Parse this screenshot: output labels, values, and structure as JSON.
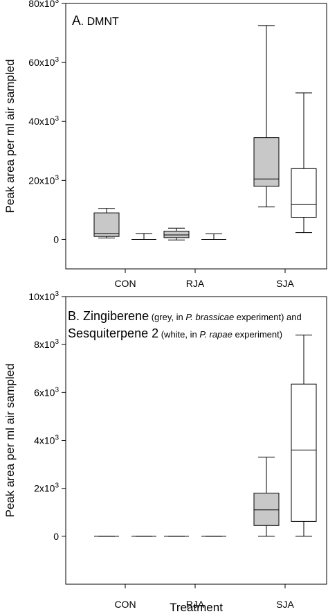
{
  "chart_data": [
    {
      "type": "box",
      "panel_label": "A",
      "title": "DMNT",
      "ylabel": "Peak area per ml air sampled",
      "xlabel": "",
      "categories": [
        "CON",
        "RJA",
        "SJA"
      ],
      "ylim": [
        -10000,
        80000
      ],
      "yticks": [
        {
          "value": 0,
          "base": "0",
          "exp": ""
        },
        {
          "value": 20000,
          "base": "20x10",
          "exp": "3"
        },
        {
          "value": 40000,
          "base": "40x10",
          "exp": "3"
        },
        {
          "value": 60000,
          "base": "60x10",
          "exp": "3"
        },
        {
          "value": 80000,
          "base": "80x10",
          "exp": "3"
        }
      ],
      "series": [
        {
          "fill": "#c8c8c8",
          "boxes": [
            {
              "category": "CON",
              "min": 500,
              "q1": 1000,
              "median": 2000,
              "q3": 9000,
              "max": 10500
            },
            {
              "category": "RJA",
              "min": -200,
              "q1": 600,
              "median": 1500,
              "q3": 2800,
              "max": 3800
            },
            {
              "category": "SJA",
              "min": 11000,
              "q1": 18000,
              "median": 20500,
              "q3": 34500,
              "max": 72500
            }
          ]
        },
        {
          "fill": "#ffffff",
          "boxes": [
            {
              "category": "CON",
              "min": 0,
              "q1": 0,
              "median": 0,
              "q3": 0,
              "max": 2000
            },
            {
              "category": "RJA",
              "min": 0,
              "q1": 0,
              "median": 0,
              "q3": 0,
              "max": 1900
            },
            {
              "category": "SJA",
              "min": 2300,
              "q1": 7500,
              "median": 11800,
              "q3": 24000,
              "max": 49700
            }
          ]
        }
      ]
    },
    {
      "type": "box",
      "panel_label": "B",
      "title_parts": [
        {
          "text": "Zingiberene",
          "size": "large",
          "italic": false
        },
        {
          "text": " (grey, in ",
          "size": "small",
          "italic": false
        },
        {
          "text": "P. brassicae",
          "size": "small",
          "italic": true
        },
        {
          "text": " experiment) and",
          "size": "small",
          "italic": false
        }
      ],
      "title_parts_line2": [
        {
          "text": "Sesquiterpene 2",
          "size": "large",
          "italic": false
        },
        {
          "text": " (white, in ",
          "size": "small",
          "italic": false
        },
        {
          "text": "P. rapae",
          "size": "small",
          "italic": true
        },
        {
          "text": " experiment)",
          "size": "small",
          "italic": false
        }
      ],
      "ylabel": "Peak area per ml air sampled",
      "xlabel": "Treatment",
      "categories": [
        "CON",
        "RJA",
        "SJA"
      ],
      "ylim": [
        -2000,
        10000
      ],
      "yticks": [
        {
          "value": 0,
          "base": "0",
          "exp": ""
        },
        {
          "value": 2000,
          "base": "2x10",
          "exp": "3"
        },
        {
          "value": 4000,
          "base": "4x10",
          "exp": "3"
        },
        {
          "value": 6000,
          "base": "6x10",
          "exp": "3"
        },
        {
          "value": 8000,
          "base": "8x10",
          "exp": "3"
        },
        {
          "value": 10000,
          "base": "10x10",
          "exp": "3"
        }
      ],
      "series": [
        {
          "fill": "#c8c8c8",
          "boxes": [
            {
              "category": "CON",
              "min": 0,
              "q1": 0,
              "median": 0,
              "q3": 0,
              "max": 0
            },
            {
              "category": "RJA",
              "min": 0,
              "q1": 0,
              "median": 0,
              "q3": 0,
              "max": 0
            },
            {
              "category": "SJA",
              "min": 0,
              "q1": 450,
              "median": 1100,
              "q3": 1800,
              "max": 3300
            }
          ]
        },
        {
          "fill": "#ffffff",
          "boxes": [
            {
              "category": "CON",
              "min": 0,
              "q1": 0,
              "median": 0,
              "q3": 0,
              "max": 0
            },
            {
              "category": "RJA",
              "min": 0,
              "q1": 0,
              "median": 0,
              "q3": 0,
              "max": 0
            },
            {
              "category": "SJA",
              "min": 0,
              "q1": 620,
              "median": 3600,
              "q3": 6350,
              "max": 8400
            }
          ]
        }
      ]
    }
  ]
}
